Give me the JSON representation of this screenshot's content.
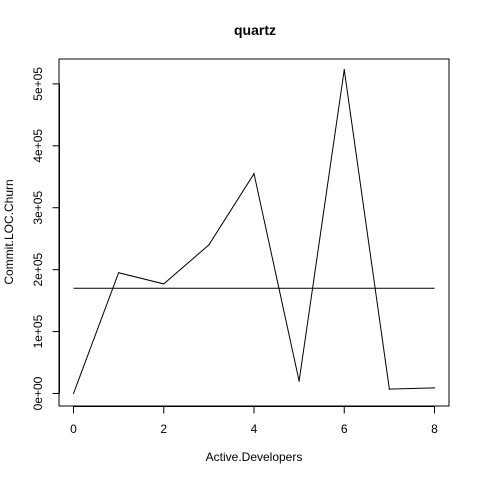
{
  "chart_data": {
    "type": "line",
    "title": "quartz",
    "xlabel": "Active.Developers",
    "ylabel": "Commit.LOC.Churn",
    "xlim": [
      0,
      8
    ],
    "ylim": [
      0,
      520000
    ],
    "x_ticks": [
      0,
      2,
      4,
      6,
      8
    ],
    "x_tick_labels": [
      "0",
      "2",
      "4",
      "6",
      "8"
    ],
    "y_ticks": [
      0,
      100000,
      200000,
      300000,
      400000,
      500000
    ],
    "y_tick_labels": [
      "0e+00",
      "1e+05",
      "2e+05",
      "3e+05",
      "4e+05",
      "5e+05"
    ],
    "grid": false,
    "legend": "none",
    "series": [
      {
        "x": [
          0,
          1,
          2,
          3,
          4,
          5,
          6,
          7,
          8
        ],
        "values": [
          0,
          195000,
          177000,
          240000,
          355000,
          20000,
          523000,
          7000,
          9000
        ],
        "color": "#000000"
      }
    ],
    "reference_lines": [
      {
        "orientation": "horizontal",
        "value": 170000,
        "color": "#000000"
      }
    ]
  }
}
